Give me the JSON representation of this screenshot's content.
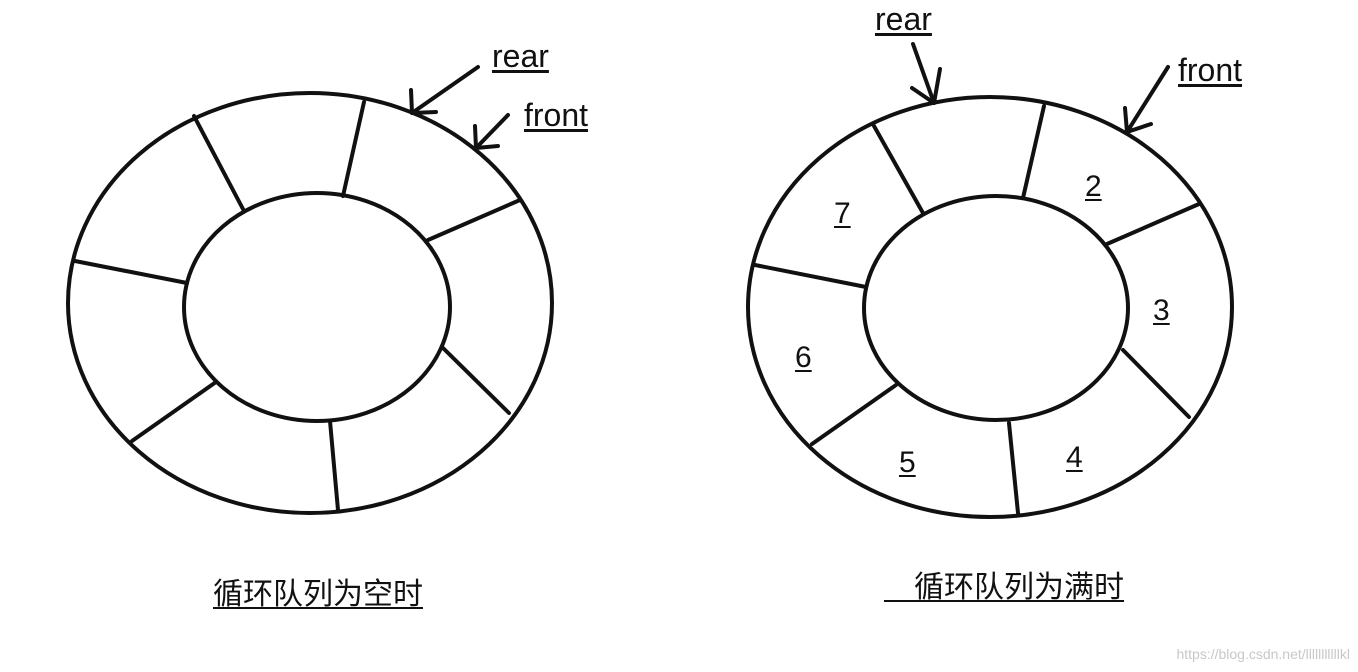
{
  "left": {
    "pointers": {
      "rear": "rear",
      "front": "front"
    },
    "slots": [
      "",
      "",
      "",
      "",
      "",
      "",
      "",
      ""
    ],
    "caption": "循环队列为空时"
  },
  "right": {
    "pointers": {
      "rear": "rear",
      "front": "front"
    },
    "slots": [
      "",
      "2",
      "3",
      "4",
      "5",
      "6",
      "7"
    ],
    "caption": "循环队列为满时"
  },
  "watermark": "https://blog.csdn.net/lllllllllllkl"
}
